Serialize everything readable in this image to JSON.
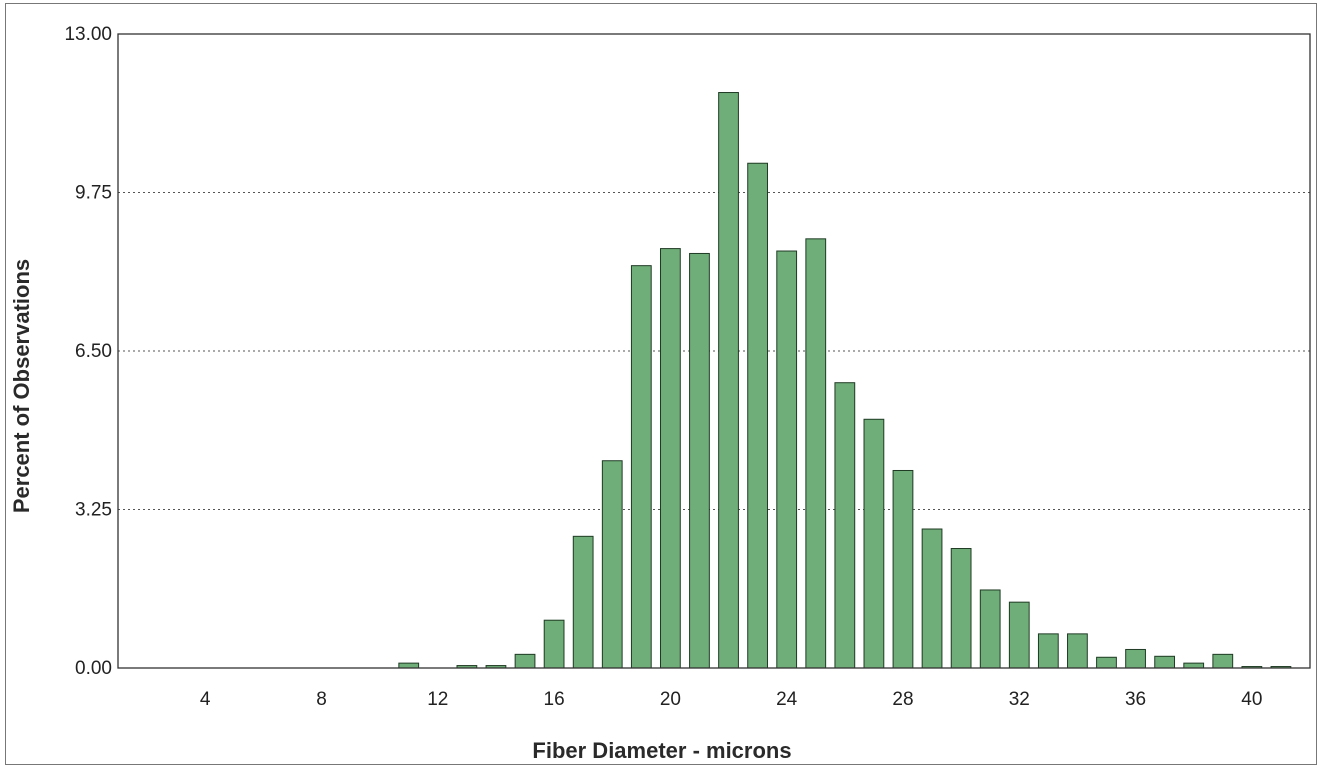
{
  "chart_data": {
    "type": "bar",
    "xlabel": "Fiber Diameter - microns",
    "ylabel": "Percent of Observations",
    "xlim": [
      1,
      42
    ],
    "ylim": [
      0,
      13
    ],
    "y_ticks": [
      "0.00",
      "3.25",
      "6.50",
      "9.75",
      "13.00"
    ],
    "x_ticks": [
      4,
      8,
      12,
      16,
      20,
      24,
      28,
      32,
      36,
      40
    ],
    "grid": "horizontal dotted",
    "bar_color": "#6fae78",
    "x": [
      11,
      12,
      13,
      14,
      15,
      16,
      17,
      18,
      19,
      20,
      21,
      22,
      23,
      24,
      25,
      26,
      27,
      28,
      29,
      30,
      31,
      32,
      33,
      34,
      35,
      36,
      37,
      38,
      39,
      40,
      41
    ],
    "values": [
      0.1,
      0.0,
      0.05,
      0.05,
      0.28,
      0.98,
      2.7,
      4.25,
      8.25,
      8.6,
      8.5,
      11.8,
      10.35,
      8.55,
      8.8,
      5.85,
      5.1,
      4.05,
      2.85,
      2.45,
      1.6,
      1.35,
      0.7,
      0.7,
      0.22,
      0.38,
      0.24,
      0.1,
      0.28,
      0.03,
      0.03
    ]
  }
}
